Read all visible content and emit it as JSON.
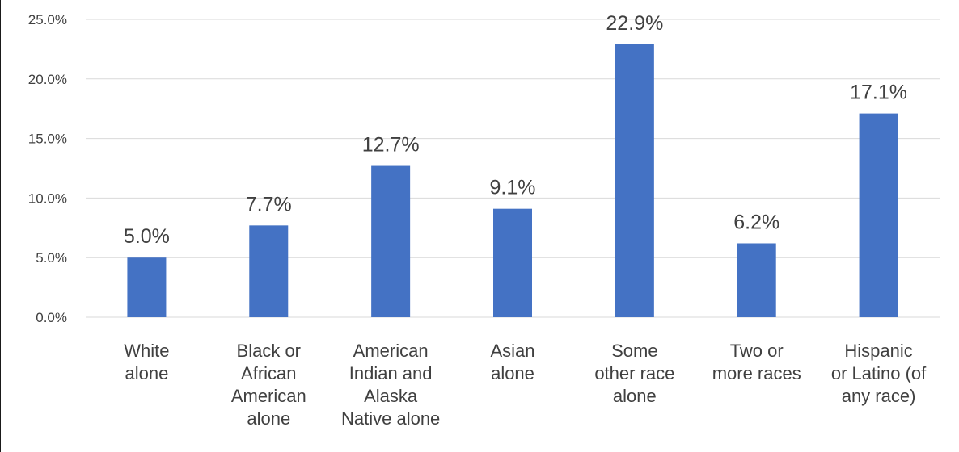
{
  "chart_data": {
    "type": "bar",
    "categories": [
      [
        "White",
        "alone"
      ],
      [
        "Black or",
        "African",
        "American",
        "alone"
      ],
      [
        "American",
        "Indian and",
        "Alaska",
        "Native alone"
      ],
      [
        "Asian",
        "alone"
      ],
      [
        "Some",
        "other race",
        "alone"
      ],
      [
        "Two or",
        "more races"
      ],
      [
        "Hispanic",
        "or Latino (of",
        "any race)"
      ]
    ],
    "values": [
      5.0,
      7.7,
      12.7,
      9.1,
      22.9,
      6.2,
      17.1
    ],
    "data_labels": [
      "5.0%",
      "7.7%",
      "12.7%",
      "9.1%",
      "22.9%",
      "6.2%",
      "17.1%"
    ],
    "ylim": [
      0,
      25
    ],
    "yticks": [
      0,
      5,
      10,
      15,
      20,
      25
    ],
    "ytick_labels": [
      "0.0%",
      "5.0%",
      "10.0%",
      "15.0%",
      "20.0%",
      "25.0%"
    ],
    "grid": true,
    "bar_color": "#4472c4",
    "title": "",
    "xlabel": "",
    "ylabel": ""
  }
}
